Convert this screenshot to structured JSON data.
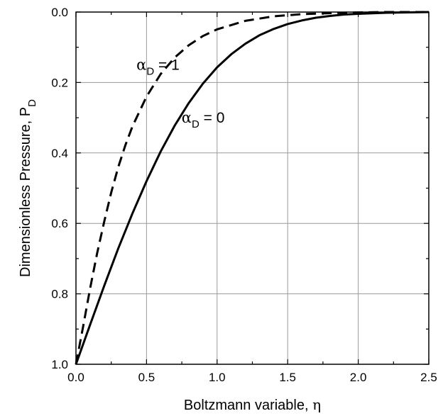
{
  "chart_data": {
    "type": "line",
    "xlabel": "Boltzmann variable, η",
    "ylabel": "Dimensionless Pressure, P",
    "ylabel_sub": "D",
    "xlim": [
      0.0,
      2.5
    ],
    "ylim": [
      0.0,
      1.0
    ],
    "y_inverted": true,
    "grid": true,
    "x_ticks": [
      "0.0",
      "0.5",
      "1.0",
      "1.5",
      "2.0",
      "2.5"
    ],
    "y_ticks": [
      "0.0",
      "0.2",
      "0.4",
      "0.6",
      "0.8",
      "1.0"
    ],
    "series": [
      {
        "name": "α_D = 0",
        "style": "solid",
        "color": "#000000",
        "x": [
          0.0,
          0.1,
          0.2,
          0.3,
          0.4,
          0.5,
          0.6,
          0.7,
          0.8,
          0.9,
          1.0,
          1.1,
          1.2,
          1.3,
          1.4,
          1.5,
          1.6,
          1.7,
          1.8,
          1.9,
          2.0,
          2.2,
          2.5
        ],
        "y": [
          1.0,
          0.888,
          0.777,
          0.671,
          0.572,
          0.48,
          0.396,
          0.322,
          0.258,
          0.203,
          0.157,
          0.12,
          0.09,
          0.066,
          0.048,
          0.034,
          0.024,
          0.016,
          0.011,
          0.007,
          0.005,
          0.002,
          0.0
        ]
      },
      {
        "name": "α_D = 1",
        "style": "dashed",
        "color": "#000000",
        "x": [
          0.0,
          0.05,
          0.1,
          0.15,
          0.2,
          0.25,
          0.3,
          0.35,
          0.4,
          0.5,
          0.6,
          0.7,
          0.8,
          0.9,
          1.0,
          1.2,
          1.4,
          1.6,
          1.8,
          2.0,
          2.2,
          2.5
        ],
        "y": [
          1.0,
          0.895,
          0.785,
          0.685,
          0.595,
          0.512,
          0.44,
          0.378,
          0.325,
          0.24,
          0.176,
          0.129,
          0.094,
          0.068,
          0.049,
          0.025,
          0.012,
          0.006,
          0.003,
          0.001,
          0.0,
          0.0
        ]
      }
    ],
    "annotations": [
      {
        "label": "α",
        "sub": "D",
        "text": "= 1",
        "x": 0.72,
        "y": 0.15
      },
      {
        "label": "α",
        "sub": "D",
        "text": "= 0",
        "x": 1.04,
        "y": 0.3
      }
    ]
  }
}
